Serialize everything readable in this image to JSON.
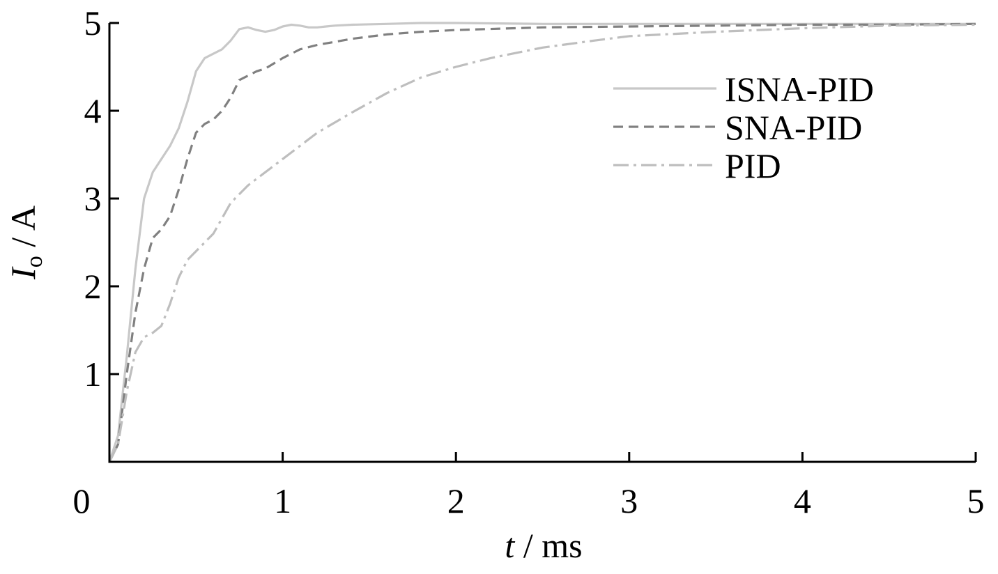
{
  "chart_data": {
    "type": "line",
    "xlabel_italic": "t",
    "xlabel_unit": " / ms",
    "ylabel_italic": "I",
    "ylabel_sub": "o",
    "ylabel_unit": " / A",
    "xlim": [
      0,
      5
    ],
    "ylim": [
      0,
      5
    ],
    "x_ticks": [
      1,
      2,
      3,
      4,
      5
    ],
    "x_tick_labels": [
      "1",
      "2",
      "3",
      "4",
      "5"
    ],
    "y_ticks": [
      1,
      2,
      3,
      4,
      5
    ],
    "y_tick_labels": [
      "1",
      "2",
      "3",
      "4",
      "5"
    ],
    "origin_label": "0",
    "grid": false,
    "legend_position": "top-right",
    "series": [
      {
        "name": "ISNA-PID",
        "color": "#c8c8c8",
        "dash": "solid",
        "x": [
          0,
          0.05,
          0.1,
          0.15,
          0.2,
          0.25,
          0.3,
          0.35,
          0.4,
          0.45,
          0.5,
          0.55,
          0.6,
          0.65,
          0.7,
          0.75,
          0.8,
          0.85,
          0.9,
          0.95,
          1.0,
          1.05,
          1.1,
          1.15,
          1.2,
          1.25,
          1.3,
          1.4,
          1.6,
          1.8,
          2.0,
          2.5,
          3.0,
          4.0,
          5.0
        ],
        "y": [
          0,
          0.3,
          1.2,
          2.2,
          3.0,
          3.3,
          3.45,
          3.6,
          3.8,
          4.1,
          4.45,
          4.6,
          4.65,
          4.7,
          4.8,
          4.93,
          4.95,
          4.92,
          4.9,
          4.92,
          4.96,
          4.98,
          4.97,
          4.95,
          4.95,
          4.96,
          4.97,
          4.98,
          4.99,
          5.0,
          5.0,
          4.99,
          4.99,
          4.99,
          4.99
        ]
      },
      {
        "name": "SNA-PID",
        "color": "#808080",
        "dash": "dashed",
        "x": [
          0,
          0.05,
          0.1,
          0.15,
          0.2,
          0.25,
          0.3,
          0.35,
          0.4,
          0.45,
          0.5,
          0.55,
          0.6,
          0.65,
          0.7,
          0.75,
          0.8,
          0.85,
          0.9,
          1.0,
          1.1,
          1.2,
          1.4,
          1.6,
          1.8,
          2.0,
          2.5,
          3.0,
          3.5,
          4.0,
          4.5,
          5.0
        ],
        "y": [
          0,
          0.2,
          1.0,
          1.7,
          2.2,
          2.55,
          2.65,
          2.8,
          3.1,
          3.45,
          3.75,
          3.85,
          3.9,
          4.0,
          4.15,
          4.35,
          4.4,
          4.45,
          4.48,
          4.6,
          4.7,
          4.75,
          4.82,
          4.87,
          4.9,
          4.92,
          4.95,
          4.96,
          4.97,
          4.98,
          4.98,
          4.99
        ]
      },
      {
        "name": "PID",
        "color": "#bebebe",
        "dash": "dash-dot",
        "x": [
          0,
          0.05,
          0.1,
          0.15,
          0.2,
          0.25,
          0.3,
          0.35,
          0.4,
          0.45,
          0.5,
          0.6,
          0.7,
          0.8,
          0.9,
          1.0,
          1.2,
          1.4,
          1.6,
          1.8,
          2.0,
          2.2,
          2.5,
          2.8,
          3.0,
          3.5,
          4.0,
          4.5,
          5.0
        ],
        "y": [
          0,
          0.2,
          0.8,
          1.25,
          1.42,
          1.47,
          1.55,
          1.8,
          2.1,
          2.3,
          2.4,
          2.6,
          2.95,
          3.15,
          3.3,
          3.45,
          3.75,
          3.98,
          4.2,
          4.38,
          4.5,
          4.6,
          4.72,
          4.8,
          4.85,
          4.9,
          4.94,
          4.97,
          4.98
        ]
      }
    ]
  }
}
